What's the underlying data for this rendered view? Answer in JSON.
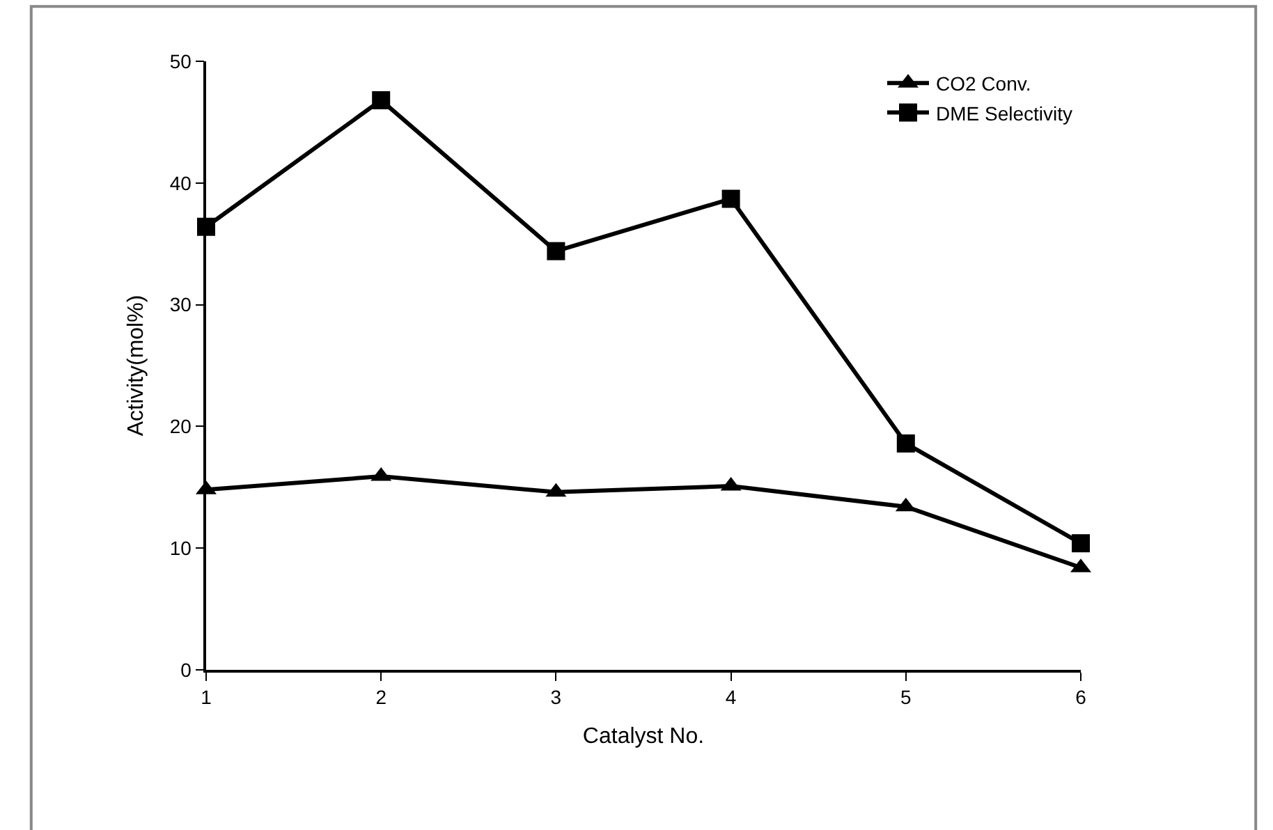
{
  "chart_data": {
    "type": "line",
    "xlabel": "Catalyst No.",
    "ylabel": "Activity(mol%)",
    "x": [
      1,
      2,
      3,
      4,
      5,
      6
    ],
    "series": [
      {
        "name": "CO2 Conv.",
        "color": "#000000",
        "marker": "triangle",
        "values": [
          14.8,
          15.9,
          14.6,
          15.1,
          13.4,
          8.4
        ]
      },
      {
        "name": "DME Selectivity",
        "color": "#000000",
        "marker": "square",
        "values": [
          36.4,
          46.8,
          34.4,
          38.7,
          18.6,
          10.4
        ]
      }
    ],
    "xlim": [
      1,
      6
    ],
    "xticks": [
      1,
      2,
      3,
      4,
      5,
      6
    ],
    "ylim": [
      0,
      50
    ],
    "yticks": [
      0,
      10,
      20,
      30,
      40,
      50
    ],
    "legend": "top right",
    "line_style": "solid"
  }
}
